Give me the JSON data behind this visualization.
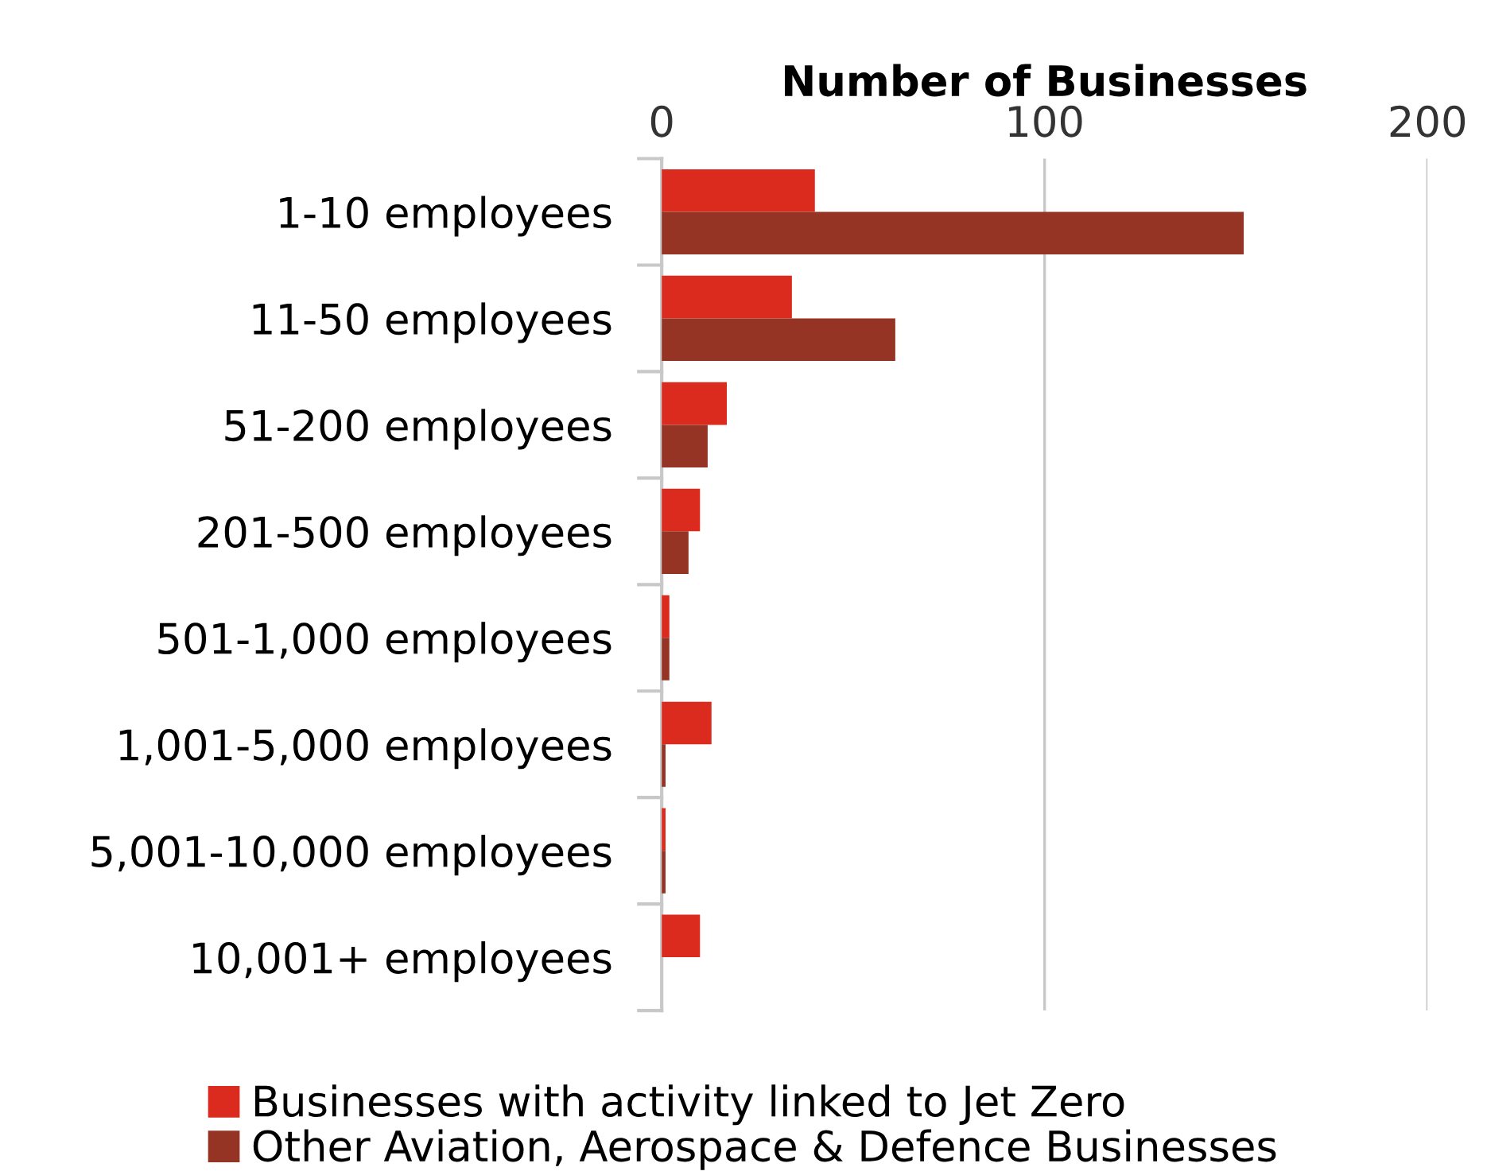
{
  "chart_data": {
    "type": "bar",
    "orientation": "horizontal",
    "xlabel": "Number of Businesses",
    "categories": [
      "1-10 employees",
      "11-50 employees",
      "51-200 employees",
      "201-500 employees",
      "501-1,000 employees",
      "1,001-5,000 employees",
      "5,001-10,000 employees",
      "10,001+ employees"
    ],
    "series": [
      {
        "name": "Businesses with activity linked to Jet Zero",
        "color": "#db2a1e",
        "values": [
          40,
          34,
          17,
          10,
          2,
          13,
          1,
          10
        ]
      },
      {
        "name": "Other Aviation, Aerospace & Defence Businesses",
        "color": "#953424",
        "values": [
          152,
          61,
          12,
          7,
          2,
          1,
          1,
          0
        ]
      }
    ],
    "xlim": [
      0,
      200
    ],
    "xticks": [
      0,
      100,
      200
    ],
    "grid": "x",
    "legend": "bottom"
  }
}
